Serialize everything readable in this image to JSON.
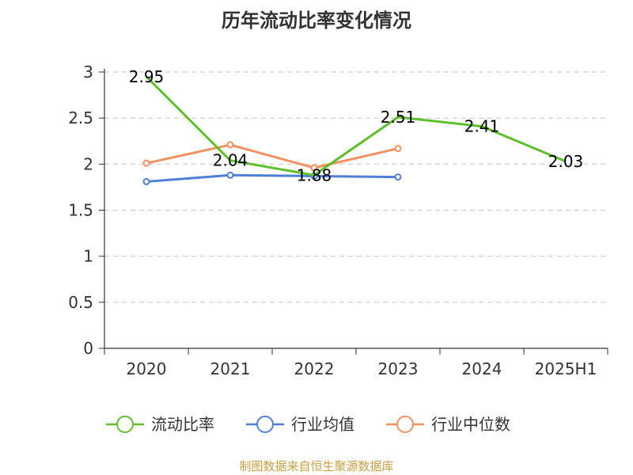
{
  "chart_data": {
    "type": "line",
    "title": "历年流动比率变化情况",
    "categories": [
      "2020",
      "2021",
      "2022",
      "2023",
      "2024",
      "2025H1"
    ],
    "ylim": [
      0,
      3
    ],
    "yticks": [
      "0",
      "0.5",
      "1",
      "1.5",
      "2",
      "2.5",
      "3"
    ],
    "grid": true,
    "legend_position": "bottom",
    "series": [
      {
        "name": "流动比率",
        "color": "#5ec02b",
        "values": [
          2.95,
          2.04,
          1.88,
          2.51,
          2.41,
          2.03
        ],
        "labels": [
          "2.95",
          "2.04",
          "1.88",
          "2.51",
          "2.41",
          "2.03"
        ],
        "show_labels": true
      },
      {
        "name": "行业均值",
        "color": "#4e7fd9",
        "values": [
          1.81,
          1.88,
          1.87,
          1.86,
          null,
          null
        ],
        "show_labels": false
      },
      {
        "name": "行业中位数",
        "color": "#f49060",
        "values": [
          2.01,
          2.21,
          1.96,
          2.17,
          null,
          null
        ],
        "show_labels": false
      }
    ]
  },
  "source": "制图数据来自恒生聚源数据库"
}
